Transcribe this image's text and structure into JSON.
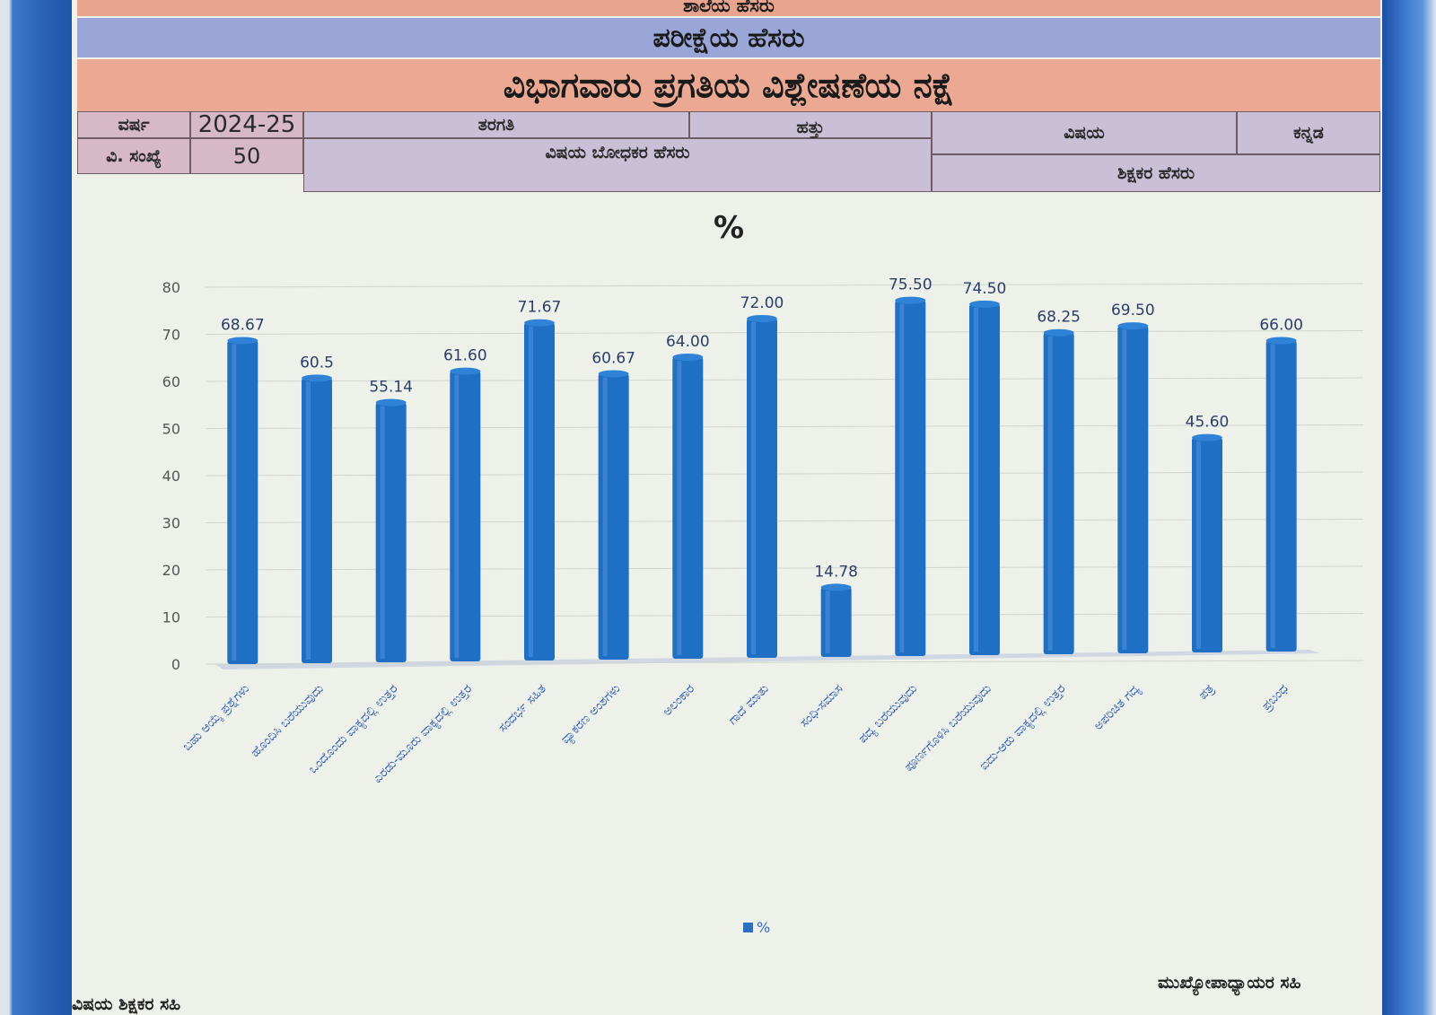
{
  "header": {
    "school_name": "ಶಾಲೆಯ ಹೆಸರು",
    "exam_name": "ಪರೀಕ್ಷೆಯ ಹೆಸರು",
    "report_title": "ವಿಭಾಗವಾರು ಪ್ರಗತಿಯ ವಿಶ್ಲೇಷಣೆಯ ನಕ್ಷೆ"
  },
  "info": {
    "year_label": "ವರ್ಷ",
    "year_value": "2024-25",
    "class_label": "ತರಗತಿ",
    "class_value": "ಹತ್ತು",
    "subject_label": "ವಿಷಯ",
    "subject_value": "ಕನ್ನಡ",
    "students_label": "ವಿ. ಸಂಖ್ಯೆ",
    "students_value": "50",
    "subject_teacher_label": "ವಿಷಯ ಬೋಧಕರ ಹೆಸರು",
    "teacher_name_label": "ಶಿಕ್ಷಕರ ಹೆಸರು"
  },
  "footer": {
    "subject_teacher_sign": "ವಿಷಯ ಶಿಕ್ಷಕರ ಸಹಿ",
    "headmaster_sign": "ಮುಖ್ಯೋಪಾಧ್ಯಾಯರ ಸಹಿ"
  },
  "chart_data": {
    "type": "bar",
    "title": "%",
    "legend": [
      "%"
    ],
    "legend_position": "bottom",
    "ylim": [
      0,
      80
    ],
    "yticks": [
      0,
      10,
      20,
      30,
      40,
      50,
      60,
      70,
      80
    ],
    "grid": true,
    "color": "#1f6fc5",
    "categories": [
      "ಬಹು ಆಯ್ಕೆ ಪ್ರಶ್ನೆಗಳು",
      "ಹೊಂದಿಸಿ ಬರೆಯುವುದು",
      "ಒಂದೊಂದು ವಾಕ್ಯದಲ್ಲಿ ಉತ್ತರ",
      "ಎರಡು-ಮೂರು ವಾಕ್ಯದಲ್ಲಿ ಉತ್ತರ",
      "ಸಂದರ್ಭ ಸಹಿತ",
      "ವ್ಯಾಕರಣ ಅಂಶಗಳು",
      "ಅಲಂಕಾರ",
      "ಗಾದೆ ಮಾತು",
      "ಸಂಧಿ-ಸಮಾಸ",
      "ಪದ್ಯ ಬರೆಯುವುದು",
      "ಪೂರ್ಣಗೊಳಿಸಿ ಬರೆಯುವುದು",
      "ಐದು-ಆರು ವಾಕ್ಯದಲ್ಲಿ ಉತ್ತರ",
      "ಅಪರಿಚಿತ ಗದ್ಯ",
      "ಪತ್ರ",
      "ಪ್ರಬಂಧ"
    ],
    "values": [
      68.67,
      60.5,
      55.14,
      61.6,
      71.67,
      60.67,
      64.0,
      72.0,
      14.78,
      75.5,
      74.5,
      68.25,
      69.5,
      45.6,
      66.0
    ],
    "value_labels": [
      "68.67",
      "60.5",
      "55.14",
      "61.60",
      "71.67",
      "60.67",
      "64.00",
      "72.00",
      "14.78",
      "75.50",
      "74.50",
      "68.25",
      "69.50",
      "45.60",
      "66.00"
    ]
  }
}
